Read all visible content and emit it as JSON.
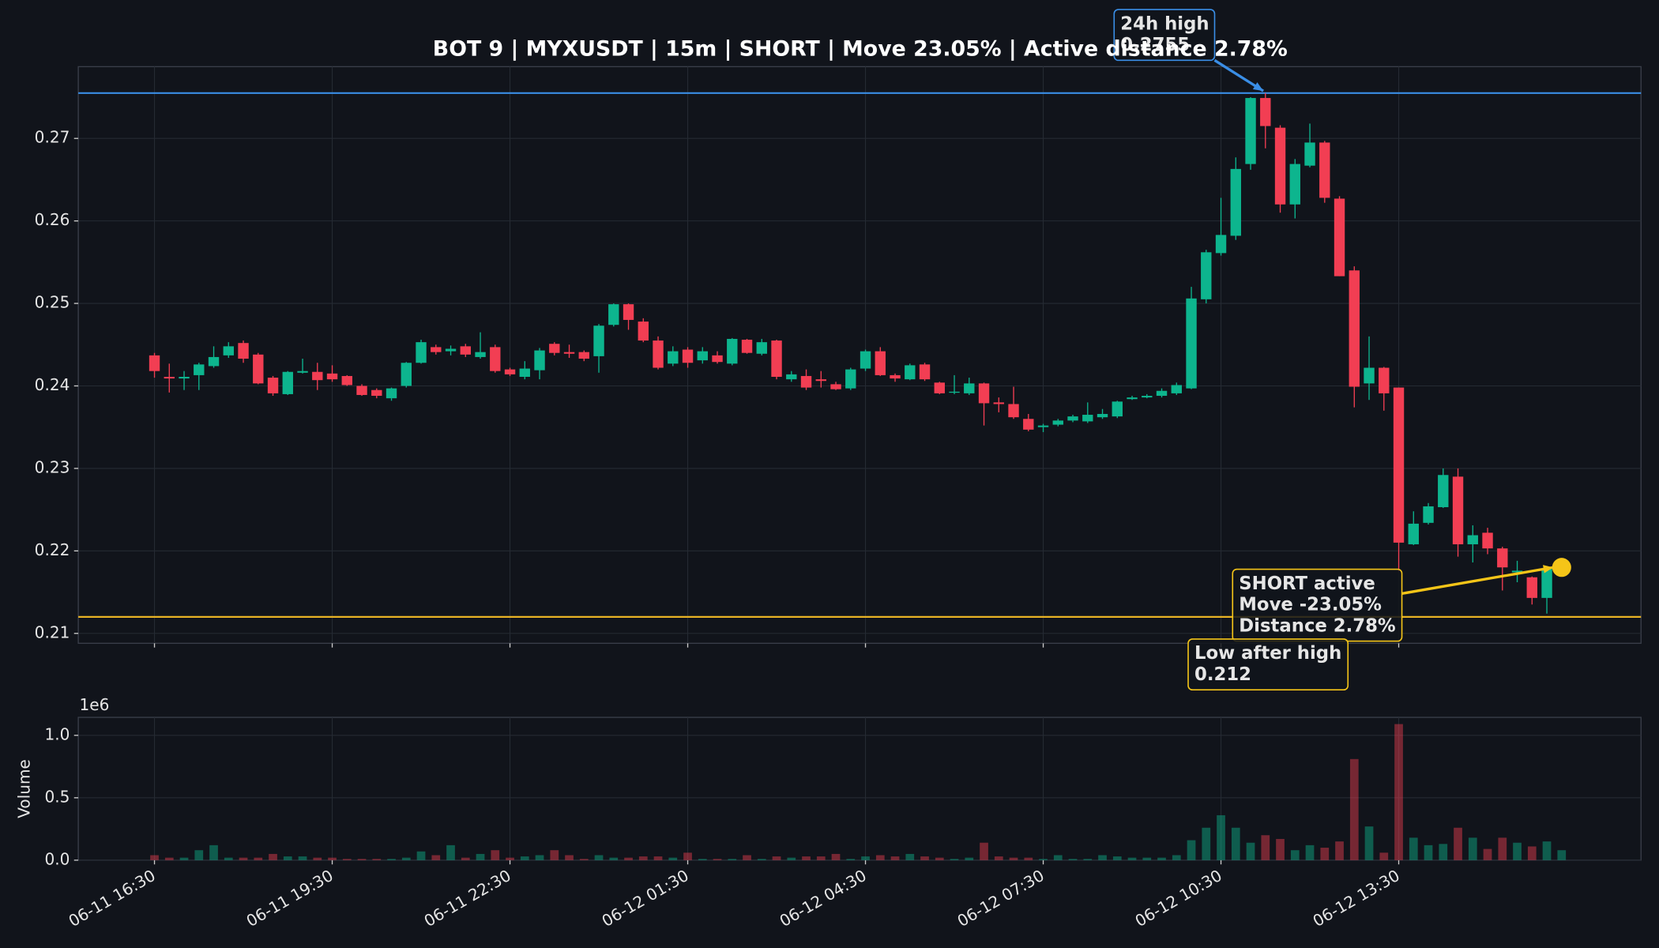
{
  "chart_data": {
    "type": "candlestick",
    "title": "BOT 9 | MYXUSDT | 15m | SHORT | Move 23.05% | Active distance 2.78%",
    "categories": [
      "06-11 16:30",
      null,
      null,
      null,
      null,
      null,
      null,
      null,
      null,
      null,
      null,
      null,
      "06-11 19:30",
      null,
      null,
      null,
      null,
      null,
      null,
      null,
      null,
      null,
      null,
      null,
      "06-11 22:30",
      null,
      null,
      null,
      null,
      null,
      null,
      null,
      null,
      null,
      null,
      null,
      "06-12 01:30",
      null,
      null,
      null,
      null,
      null,
      null,
      null,
      null,
      null,
      null,
      null,
      "06-12 04:30",
      null,
      null,
      null,
      null,
      null,
      null,
      null,
      null,
      null,
      null,
      null,
      "06-12 07:30",
      null,
      null,
      null,
      null,
      null,
      null,
      null,
      null,
      null,
      null,
      null,
      "06-12 10:30",
      null,
      null,
      null,
      null,
      null,
      null,
      null,
      null,
      null,
      null,
      null,
      "06-12 13:30",
      null,
      null,
      null,
      null,
      null,
      null,
      null,
      null,
      null,
      null,
      null
    ],
    "open": [
      0.2437,
      0.2411,
      0.2409,
      0.2413,
      0.2424,
      0.2437,
      0.2452,
      0.2438,
      0.241,
      0.239,
      0.2416,
      0.2417,
      0.2415,
      0.2412,
      0.24,
      0.2395,
      0.2385,
      0.24,
      0.2428,
      0.2447,
      0.2442,
      0.2448,
      0.2435,
      0.2447,
      0.242,
      0.2411,
      0.2419,
      0.2451,
      0.2441,
      0.2441,
      0.2436,
      0.2474,
      0.2499,
      0.2478,
      0.2455,
      0.2427,
      0.2444,
      0.2431,
      0.2437,
      0.2427,
      0.2456,
      0.2439,
      0.2455,
      0.2408,
      0.2412,
      0.2408,
      0.2402,
      0.2397,
      0.2421,
      0.2442,
      0.2413,
      0.2408,
      0.2426,
      0.2404,
      0.2392,
      0.2391,
      0.2403,
      0.238,
      0.2378,
      0.236,
      0.235,
      0.2353,
      0.2358,
      0.2357,
      0.2362,
      0.2363,
      0.2384,
      0.2386,
      0.2388,
      0.2391,
      0.2397,
      0.2505,
      0.2561,
      0.2582,
      0.2669,
      0.2749,
      0.2713,
      0.262,
      0.2667,
      0.2695,
      0.2627,
      0.254,
      0.2403,
      0.2422,
      0.2398,
      0.2208,
      0.2234,
      0.2253,
      0.229,
      0.2208,
      0.2222,
      0.2203,
      0.2174,
      0.2168,
      0.2143,
      0.2178
    ],
    "high": [
      0.244,
      0.2427,
      0.2418,
      0.2428,
      0.2448,
      0.2453,
      0.2455,
      0.244,
      0.2412,
      0.2418,
      0.2433,
      0.2428,
      0.2425,
      0.2413,
      0.2402,
      0.2397,
      0.2398,
      0.2429,
      0.2456,
      0.245,
      0.2449,
      0.2451,
      0.2465,
      0.245,
      0.2422,
      0.243,
      0.2446,
      0.2453,
      0.245,
      0.2443,
      0.2475,
      0.25,
      0.25,
      0.2482,
      0.246,
      0.2448,
      0.2447,
      0.2447,
      0.2442,
      0.2458,
      0.2457,
      0.2457,
      0.2456,
      0.2418,
      0.242,
      0.2418,
      0.2405,
      0.2422,
      0.2444,
      0.2447,
      0.2415,
      0.2427,
      0.2428,
      0.2405,
      0.2413,
      0.241,
      0.2404,
      0.2386,
      0.2399,
      0.2366,
      0.2354,
      0.236,
      0.2365,
      0.238,
      0.2372,
      0.2382,
      0.2388,
      0.239,
      0.2397,
      0.2404,
      0.252,
      0.2565,
      0.2628,
      0.2677,
      0.275,
      0.2755,
      0.2716,
      0.2675,
      0.2718,
      0.2697,
      0.263,
      0.2545,
      0.246,
      0.2423,
      0.2398,
      0.2248,
      0.2258,
      0.23,
      0.23,
      0.2231,
      0.2228,
      0.2205,
      0.2188,
      0.2169,
      0.2179,
      0.2182
    ],
    "low": [
      0.241,
      0.2392,
      0.2395,
      0.2395,
      0.2422,
      0.2434,
      0.2428,
      0.2402,
      0.2388,
      0.2389,
      0.2415,
      0.2395,
      0.2405,
      0.24,
      0.2388,
      0.2385,
      0.2382,
      0.2398,
      0.2427,
      0.2438,
      0.2437,
      0.2435,
      0.2433,
      0.2416,
      0.2412,
      0.2408,
      0.2408,
      0.2437,
      0.2434,
      0.243,
      0.2416,
      0.2472,
      0.2468,
      0.2453,
      0.242,
      0.2424,
      0.2422,
      0.2427,
      0.2427,
      0.2425,
      0.2439,
      0.2437,
      0.2408,
      0.2405,
      0.2395,
      0.2398,
      0.2395,
      0.2395,
      0.2418,
      0.2412,
      0.2405,
      0.2407,
      0.2406,
      0.239,
      0.239,
      0.2389,
      0.2352,
      0.2368,
      0.236,
      0.2345,
      0.2344,
      0.2351,
      0.2356,
      0.2355,
      0.236,
      0.2361,
      0.2383,
      0.2385,
      0.2386,
      0.2389,
      0.2396,
      0.25,
      0.2558,
      0.2577,
      0.2662,
      0.2688,
      0.261,
      0.2603,
      0.2665,
      0.2622,
      0.2533,
      0.2374,
      0.2383,
      0.237,
      0.2175,
      0.2207,
      0.2232,
      0.2252,
      0.2193,
      0.2186,
      0.2196,
      0.2152,
      0.2162,
      0.2135,
      0.2124,
      0.2176
    ],
    "close": [
      0.2418,
      0.2409,
      0.2411,
      0.2426,
      0.2435,
      0.2448,
      0.2433,
      0.2403,
      0.2391,
      0.2417,
      0.2418,
      0.2407,
      0.2408,
      0.2401,
      0.2389,
      0.2388,
      0.2397,
      0.2428,
      0.2453,
      0.2441,
      0.2445,
      0.2438,
      0.2441,
      0.2418,
      0.2414,
      0.2421,
      0.2443,
      0.244,
      0.2439,
      0.2433,
      0.2473,
      0.2499,
      0.248,
      0.2455,
      0.2422,
      0.2442,
      0.2428,
      0.2442,
      0.2429,
      0.2457,
      0.244,
      0.2453,
      0.2411,
      0.2414,
      0.2398,
      0.2406,
      0.2396,
      0.242,
      0.2442,
      0.2413,
      0.2409,
      0.2425,
      0.2408,
      0.2391,
      0.2393,
      0.2403,
      0.2379,
      0.2378,
      0.2362,
      0.2347,
      0.2352,
      0.2358,
      0.2363,
      0.2365,
      0.2366,
      0.2381,
      0.2386,
      0.2388,
      0.2394,
      0.2401,
      0.2506,
      0.2562,
      0.2583,
      0.2663,
      0.2749,
      0.2715,
      0.262,
      0.2669,
      0.2695,
      0.2628,
      0.2533,
      0.2399,
      0.2422,
      0.2391,
      0.221,
      0.2233,
      0.2254,
      0.2292,
      0.2208,
      0.2219,
      0.2203,
      0.218,
      0.2176,
      0.2143,
      0.2178,
      0.218
    ],
    "volume": [
      0.04,
      0.02,
      0.02,
      0.08,
      0.12,
      0.02,
      0.02,
      0.02,
      0.05,
      0.03,
      0.03,
      0.02,
      0.02,
      0.01,
      0.01,
      0.01,
      0.01,
      0.02,
      0.07,
      0.04,
      0.12,
      0.02,
      0.05,
      0.08,
      0.02,
      0.03,
      0.04,
      0.08,
      0.04,
      0.01,
      0.04,
      0.02,
      0.02,
      0.03,
      0.03,
      0.02,
      0.06,
      0.01,
      0.01,
      0.01,
      0.04,
      0.01,
      0.03,
      0.02,
      0.03,
      0.03,
      0.05,
      0.01,
      0.03,
      0.04,
      0.03,
      0.05,
      0.03,
      0.02,
      0.01,
      0.02,
      0.14,
      0.03,
      0.02,
      0.02,
      0.01,
      0.04,
      0.01,
      0.01,
      0.04,
      0.03,
      0.02,
      0.02,
      0.02,
      0.04,
      0.16,
      0.26,
      0.36,
      0.26,
      0.14,
      0.2,
      0.17,
      0.08,
      0.12,
      0.1,
      0.15,
      0.81,
      0.27,
      0.06,
      1.09,
      0.18,
      0.12,
      0.13,
      0.26,
      0.18,
      0.09,
      0.18,
      0.14,
      0.11,
      0.15,
      0.08
    ],
    "up_color": "#0db58e",
    "down_color": "#f23e53",
    "ylim": [
      0.2088,
      0.2787
    ],
    "yticks": [
      0.21,
      0.22,
      0.23,
      0.24,
      0.25,
      0.26,
      0.27
    ],
    "volume_ylim": [
      0,
      1.144
    ],
    "volume_yticks": [
      {
        "value": 0,
        "label": "0.0"
      },
      {
        "value": 0.5,
        "label": "0.5"
      },
      {
        "value": 1,
        "label": "1.0"
      }
    ],
    "volume_label": "Volume",
    "volume_scale_label": "1e6",
    "grid": true,
    "lines": [
      {
        "value": 0.2755,
        "color": "#3a8ee6"
      },
      {
        "value": 0.212,
        "color": "#e8b325"
      }
    ],
    "annotations": [
      {
        "lines": [
          "24h high",
          "0.2755"
        ],
        "color": "#3a8ee6"
      },
      {
        "lines": [
          "SHORT active",
          "Move -23.05%",
          "Distance 2.78%"
        ],
        "color": "#f5c518"
      },
      {
        "lines": [
          "Low after high",
          "0.212"
        ],
        "color": "#f5c518"
      }
    ],
    "marker_color": "#f5c518"
  }
}
